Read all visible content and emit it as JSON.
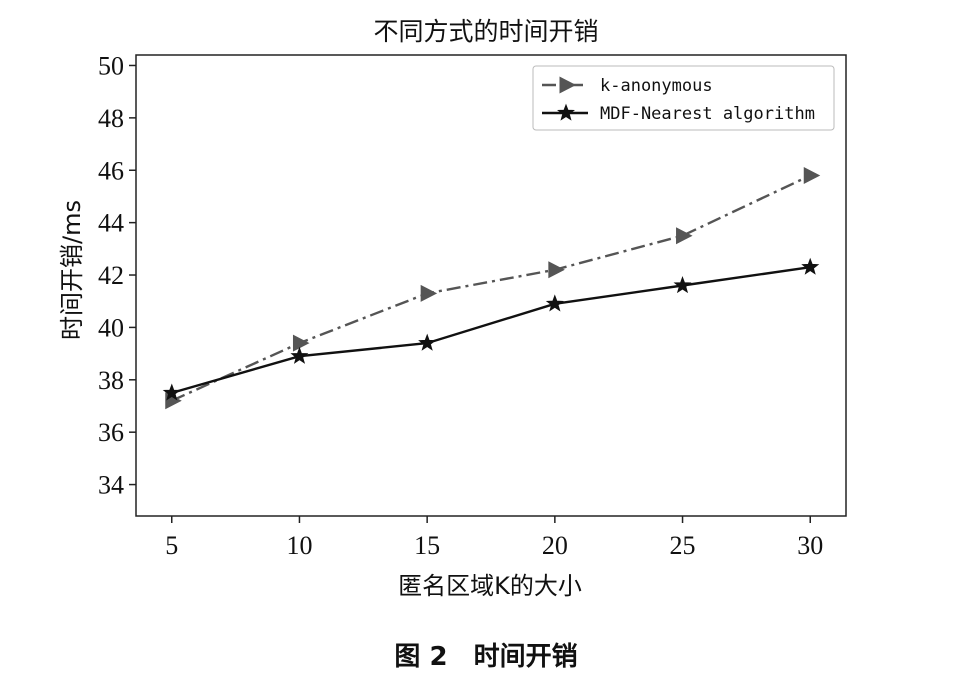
{
  "caption": "图 2　时间开销",
  "chart_data": {
    "type": "line",
    "title": "不同方式的时间开销",
    "xlabel": "匿名区域K的大小",
    "ylabel": "时间开销/ms",
    "x": [
      5,
      10,
      15,
      20,
      25,
      30
    ],
    "x_ticks": [
      "5",
      "10",
      "15",
      "20",
      "25",
      "30"
    ],
    "xlim": [
      3.6,
      31.4
    ],
    "ylim": [
      32.8,
      50.4
    ],
    "y_ticks": [
      "34",
      "36",
      "38",
      "40",
      "42",
      "44",
      "46",
      "48",
      "50"
    ],
    "grid": false,
    "legend_position": "top-right",
    "series": [
      {
        "name": "k-anonymous",
        "values": [
          37.2,
          39.4,
          41.3,
          42.2,
          43.5,
          45.8
        ],
        "color": "#555555",
        "line_style": "dash-dot",
        "marker": "triangle-right"
      },
      {
        "name": "MDF-Nearest algorithm",
        "values": [
          37.5,
          38.9,
          39.4,
          40.9,
          41.6,
          42.3
        ],
        "color": "#111111",
        "line_style": "solid",
        "marker": "star"
      }
    ]
  }
}
